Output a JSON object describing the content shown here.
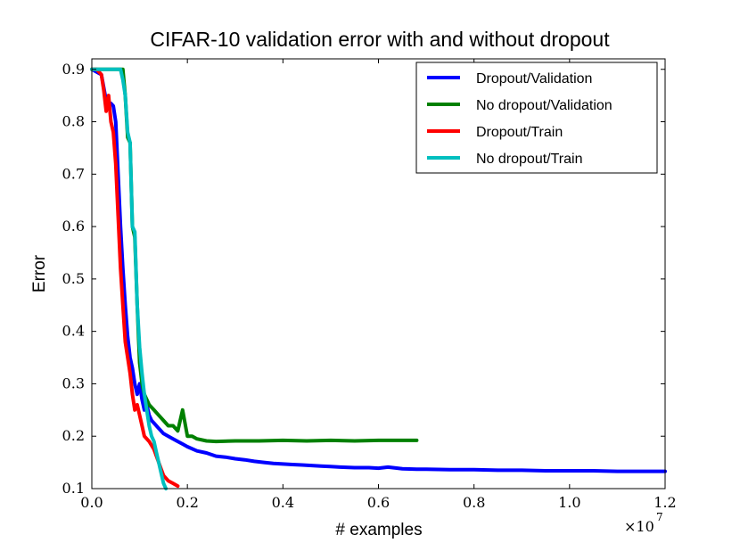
{
  "chart_data": {
    "type": "line",
    "title": "CIFAR-10 validation error with and without dropout",
    "xlabel": "# examples",
    "ylabel": "Error",
    "x_multiplier": "×10",
    "x_exponent": "7",
    "xlim": [
      0.0,
      1.2
    ],
    "ylim": [
      0.1,
      0.92
    ],
    "xticks": [
      "0.0",
      "0.2",
      "0.4",
      "0.6",
      "0.8",
      "1.0",
      "1.2"
    ],
    "yticks": [
      "0.1",
      "0.2",
      "0.3",
      "0.4",
      "0.5",
      "0.6",
      "0.7",
      "0.8",
      "0.9"
    ],
    "legend_position": "top-right",
    "series": [
      {
        "name": "Dropout/Validation",
        "color": "#0000ff",
        "x": [
          0.0,
          0.01,
          0.02,
          0.03,
          0.04,
          0.045,
          0.05,
          0.055,
          0.06,
          0.065,
          0.07,
          0.075,
          0.08,
          0.085,
          0.09,
          0.095,
          0.1,
          0.105,
          0.11,
          0.115,
          0.12,
          0.125,
          0.13,
          0.14,
          0.15,
          0.16,
          0.17,
          0.18,
          0.19,
          0.2,
          0.22,
          0.24,
          0.26,
          0.28,
          0.3,
          0.32,
          0.34,
          0.36,
          0.38,
          0.4,
          0.42,
          0.44,
          0.46,
          0.48,
          0.5,
          0.52,
          0.55,
          0.58,
          0.6,
          0.62,
          0.65,
          0.68,
          0.7,
          0.75,
          0.8,
          0.85,
          0.9,
          0.95,
          1.0,
          1.05,
          1.1,
          1.15,
          1.2
        ],
        "y": [
          0.9,
          0.895,
          0.89,
          0.84,
          0.835,
          0.83,
          0.8,
          0.7,
          0.6,
          0.52,
          0.45,
          0.39,
          0.35,
          0.33,
          0.3,
          0.28,
          0.3,
          0.27,
          0.25,
          0.26,
          0.24,
          0.23,
          0.225,
          0.215,
          0.205,
          0.2,
          0.195,
          0.19,
          0.185,
          0.18,
          0.172,
          0.168,
          0.162,
          0.16,
          0.157,
          0.155,
          0.152,
          0.15,
          0.148,
          0.147,
          0.146,
          0.145,
          0.144,
          0.143,
          0.142,
          0.141,
          0.14,
          0.14,
          0.139,
          0.141,
          0.138,
          0.137,
          0.137,
          0.136,
          0.136,
          0.135,
          0.135,
          0.134,
          0.134,
          0.134,
          0.133,
          0.133,
          0.133
        ]
      },
      {
        "name": "No dropout/Validation",
        "color": "#008000",
        "x": [
          0.0,
          0.02,
          0.04,
          0.055,
          0.065,
          0.07,
          0.075,
          0.08,
          0.085,
          0.09,
          0.095,
          0.1,
          0.105,
          0.11,
          0.115,
          0.12,
          0.13,
          0.14,
          0.15,
          0.16,
          0.17,
          0.18,
          0.19,
          0.2,
          0.21,
          0.22,
          0.24,
          0.26,
          0.3,
          0.35,
          0.4,
          0.45,
          0.5,
          0.55,
          0.6,
          0.65,
          0.68
        ],
        "y": [
          0.9,
          0.9,
          0.9,
          0.9,
          0.9,
          0.85,
          0.77,
          0.76,
          0.6,
          0.58,
          0.45,
          0.34,
          0.3,
          0.28,
          0.27,
          0.26,
          0.25,
          0.24,
          0.23,
          0.22,
          0.22,
          0.21,
          0.25,
          0.2,
          0.2,
          0.195,
          0.191,
          0.19,
          0.191,
          0.191,
          0.192,
          0.191,
          0.192,
          0.191,
          0.192,
          0.192,
          0.192
        ]
      },
      {
        "name": "Dropout/Train",
        "color": "#ff0000",
        "x": [
          0.0,
          0.01,
          0.02,
          0.025,
          0.03,
          0.035,
          0.04,
          0.045,
          0.05,
          0.055,
          0.06,
          0.065,
          0.07,
          0.075,
          0.08,
          0.085,
          0.09,
          0.095,
          0.1,
          0.105,
          0.11,
          0.12,
          0.13,
          0.14,
          0.15,
          0.16,
          0.17,
          0.18
        ],
        "y": [
          0.9,
          0.9,
          0.89,
          0.86,
          0.82,
          0.85,
          0.8,
          0.78,
          0.72,
          0.62,
          0.52,
          0.45,
          0.38,
          0.35,
          0.32,
          0.28,
          0.25,
          0.26,
          0.24,
          0.22,
          0.2,
          0.19,
          0.175,
          0.15,
          0.125,
          0.115,
          0.11,
          0.105
        ]
      },
      {
        "name": "No dropout/Train",
        "color": "#00bfbf",
        "x": [
          0.0,
          0.02,
          0.04,
          0.06,
          0.065,
          0.07,
          0.075,
          0.08,
          0.085,
          0.09,
          0.095,
          0.1,
          0.105,
          0.11,
          0.115,
          0.12,
          0.125,
          0.13,
          0.135,
          0.14,
          0.145,
          0.15,
          0.155
        ],
        "y": [
          0.9,
          0.9,
          0.9,
          0.9,
          0.88,
          0.85,
          0.78,
          0.76,
          0.6,
          0.59,
          0.45,
          0.37,
          0.32,
          0.28,
          0.25,
          0.22,
          0.2,
          0.19,
          0.17,
          0.15,
          0.13,
          0.11,
          0.1
        ]
      }
    ]
  }
}
